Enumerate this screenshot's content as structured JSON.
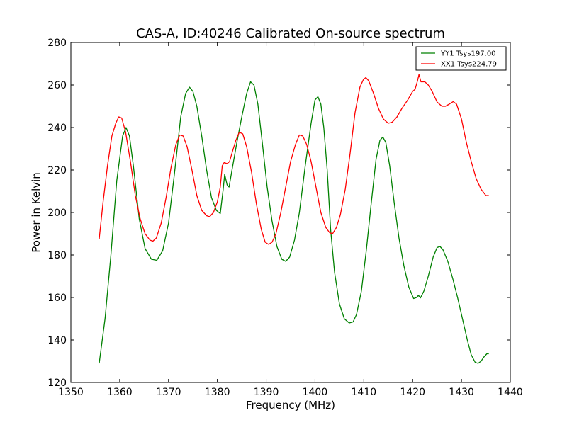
{
  "chart_data": {
    "type": "line",
    "title": "CAS-A, ID:40246 Calibrated On-source spectrum",
    "xlabel": "Frequency (MHz)",
    "ylabel": "Power in Kelvin",
    "xlim": [
      1350,
      1440
    ],
    "ylim": [
      120,
      280
    ],
    "xticks": [
      "1350",
      "1360",
      "1370",
      "1380",
      "1390",
      "1400",
      "1410",
      "1420",
      "1430",
      "1440"
    ],
    "yticks": [
      "120",
      "140",
      "160",
      "180",
      "200",
      "220",
      "240",
      "260",
      "280"
    ],
    "grid": false,
    "legend_position": "top-right",
    "series": [
      {
        "name": "YY1 Tsys197.00",
        "color": "#008000",
        "points": [
          [
            1355.8,
            129
          ],
          [
            1357.0,
            150
          ],
          [
            1358.2,
            180
          ],
          [
            1359.4,
            215
          ],
          [
            1360.6,
            236
          ],
          [
            1361.3,
            240
          ],
          [
            1362.0,
            236
          ],
          [
            1362.8,
            222
          ],
          [
            1364.0,
            197
          ],
          [
            1365.2,
            183
          ],
          [
            1366.5,
            178
          ],
          [
            1367.6,
            177.5
          ],
          [
            1368.8,
            182
          ],
          [
            1370.0,
            195
          ],
          [
            1371.2,
            218
          ],
          [
            1372.5,
            245
          ],
          [
            1373.5,
            256
          ],
          [
            1374.3,
            259
          ],
          [
            1375.0,
            257
          ],
          [
            1375.8,
            250
          ],
          [
            1376.8,
            236
          ],
          [
            1377.8,
            220
          ],
          [
            1378.8,
            207
          ],
          [
            1379.8,
            201
          ],
          [
            1380.6,
            199.5
          ],
          [
            1381.2,
            211
          ],
          [
            1381.5,
            218
          ],
          [
            1382.0,
            213
          ],
          [
            1382.4,
            212
          ],
          [
            1383.0,
            220
          ],
          [
            1384.0,
            233
          ],
          [
            1385.0,
            245
          ],
          [
            1386.0,
            256
          ],
          [
            1386.8,
            261.5
          ],
          [
            1387.5,
            260
          ],
          [
            1388.3,
            251
          ],
          [
            1389.2,
            233
          ],
          [
            1390.2,
            212
          ],
          [
            1391.2,
            196
          ],
          [
            1392.2,
            184
          ],
          [
            1393.2,
            178
          ],
          [
            1394.0,
            177
          ],
          [
            1394.8,
            179
          ],
          [
            1395.8,
            187
          ],
          [
            1396.8,
            200
          ],
          [
            1398.0,
            222
          ],
          [
            1399.2,
            242
          ],
          [
            1400.0,
            253
          ],
          [
            1400.6,
            254.5
          ],
          [
            1401.2,
            251
          ],
          [
            1401.8,
            240
          ],
          [
            1402.5,
            220
          ],
          [
            1403.2,
            192
          ],
          [
            1404.0,
            172
          ],
          [
            1405.0,
            157
          ],
          [
            1406.0,
            150
          ],
          [
            1407.0,
            148
          ],
          [
            1407.8,
            148.5
          ],
          [
            1408.5,
            152
          ],
          [
            1409.5,
            163
          ],
          [
            1410.5,
            182
          ],
          [
            1411.5,
            204
          ],
          [
            1412.5,
            225
          ],
          [
            1413.3,
            234
          ],
          [
            1413.9,
            235.5
          ],
          [
            1414.5,
            233
          ],
          [
            1415.3,
            222
          ],
          [
            1416.2,
            205
          ],
          [
            1417.2,
            188
          ],
          [
            1418.2,
            175
          ],
          [
            1419.2,
            165
          ],
          [
            1420.2,
            159.5
          ],
          [
            1420.8,
            160
          ],
          [
            1421.2,
            161
          ],
          [
            1421.6,
            159.8
          ],
          [
            1422.3,
            163
          ],
          [
            1423.2,
            170
          ],
          [
            1424.2,
            179
          ],
          [
            1425.0,
            183.5
          ],
          [
            1425.6,
            184
          ],
          [
            1426.2,
            182.5
          ],
          [
            1427.2,
            177
          ],
          [
            1428.2,
            169
          ],
          [
            1429.2,
            160
          ],
          [
            1430.2,
            150
          ],
          [
            1431.2,
            140
          ],
          [
            1432.0,
            133
          ],
          [
            1432.8,
            129.5
          ],
          [
            1433.4,
            129
          ],
          [
            1434.0,
            130
          ],
          [
            1434.6,
            132
          ],
          [
            1435.2,
            133.5
          ],
          [
            1435.6,
            133.5
          ]
        ]
      },
      {
        "name": "XX1 Tsys224.79",
        "color": "#ff0000",
        "points": [
          [
            1355.8,
            187.5
          ],
          [
            1356.6,
            205
          ],
          [
            1357.5,
            222
          ],
          [
            1358.4,
            236
          ],
          [
            1359.2,
            242
          ],
          [
            1359.8,
            245
          ],
          [
            1360.4,
            244.5
          ],
          [
            1361.2,
            238
          ],
          [
            1362.2,
            224
          ],
          [
            1363.2,
            208
          ],
          [
            1364.2,
            197
          ],
          [
            1365.2,
            190
          ],
          [
            1366.2,
            187
          ],
          [
            1366.8,
            186.5
          ],
          [
            1367.5,
            188
          ],
          [
            1368.5,
            195
          ],
          [
            1369.5,
            207
          ],
          [
            1370.5,
            221
          ],
          [
            1371.5,
            232
          ],
          [
            1372.3,
            236.5
          ],
          [
            1373.0,
            236
          ],
          [
            1373.8,
            231
          ],
          [
            1374.8,
            220
          ],
          [
            1375.8,
            208
          ],
          [
            1376.8,
            201
          ],
          [
            1377.8,
            198.5
          ],
          [
            1378.4,
            198
          ],
          [
            1379.2,
            200
          ],
          [
            1380.0,
            205
          ],
          [
            1380.6,
            212
          ],
          [
            1381.0,
            222
          ],
          [
            1381.4,
            223.5
          ],
          [
            1382.0,
            223
          ],
          [
            1382.5,
            224
          ],
          [
            1383.0,
            228
          ],
          [
            1383.8,
            234
          ],
          [
            1384.5,
            237.8
          ],
          [
            1385.2,
            237
          ],
          [
            1386.0,
            231
          ],
          [
            1387.0,
            219
          ],
          [
            1388.0,
            204
          ],
          [
            1389.0,
            192
          ],
          [
            1389.8,
            186
          ],
          [
            1390.5,
            185
          ],
          [
            1391.2,
            186
          ],
          [
            1392.0,
            190
          ],
          [
            1393.0,
            200
          ],
          [
            1394.0,
            212
          ],
          [
            1395.0,
            224
          ],
          [
            1396.0,
            232
          ],
          [
            1396.8,
            236.5
          ],
          [
            1397.5,
            236
          ],
          [
            1398.3,
            232
          ],
          [
            1399.2,
            224
          ],
          [
            1400.2,
            212
          ],
          [
            1401.2,
            200
          ],
          [
            1402.2,
            193
          ],
          [
            1403.0,
            190.5
          ],
          [
            1403.6,
            190
          ],
          [
            1404.4,
            193
          ],
          [
            1405.2,
            199
          ],
          [
            1406.2,
            211
          ],
          [
            1407.2,
            228
          ],
          [
            1408.2,
            247
          ],
          [
            1409.2,
            259
          ],
          [
            1409.9,
            262.5
          ],
          [
            1410.4,
            263.5
          ],
          [
            1411.0,
            262
          ],
          [
            1412.0,
            256
          ],
          [
            1413.0,
            249
          ],
          [
            1414.0,
            244
          ],
          [
            1415.0,
            242
          ],
          [
            1415.8,
            242.5
          ],
          [
            1416.8,
            245
          ],
          [
            1417.8,
            249
          ],
          [
            1419.0,
            253
          ],
          [
            1420.0,
            257
          ],
          [
            1420.5,
            258
          ],
          [
            1421.0,
            262
          ],
          [
            1421.3,
            265
          ],
          [
            1421.7,
            261.5
          ],
          [
            1422.5,
            261.5
          ],
          [
            1423.2,
            260
          ],
          [
            1424.0,
            257
          ],
          [
            1425.0,
            252
          ],
          [
            1426.0,
            250
          ],
          [
            1426.7,
            250
          ],
          [
            1427.5,
            251
          ],
          [
            1428.3,
            252.2
          ],
          [
            1429.0,
            251
          ],
          [
            1430.0,
            244
          ],
          [
            1431.0,
            233
          ],
          [
            1432.0,
            224
          ],
          [
            1433.0,
            216
          ],
          [
            1434.0,
            211
          ],
          [
            1435.0,
            208
          ],
          [
            1435.6,
            208
          ]
        ]
      }
    ]
  }
}
